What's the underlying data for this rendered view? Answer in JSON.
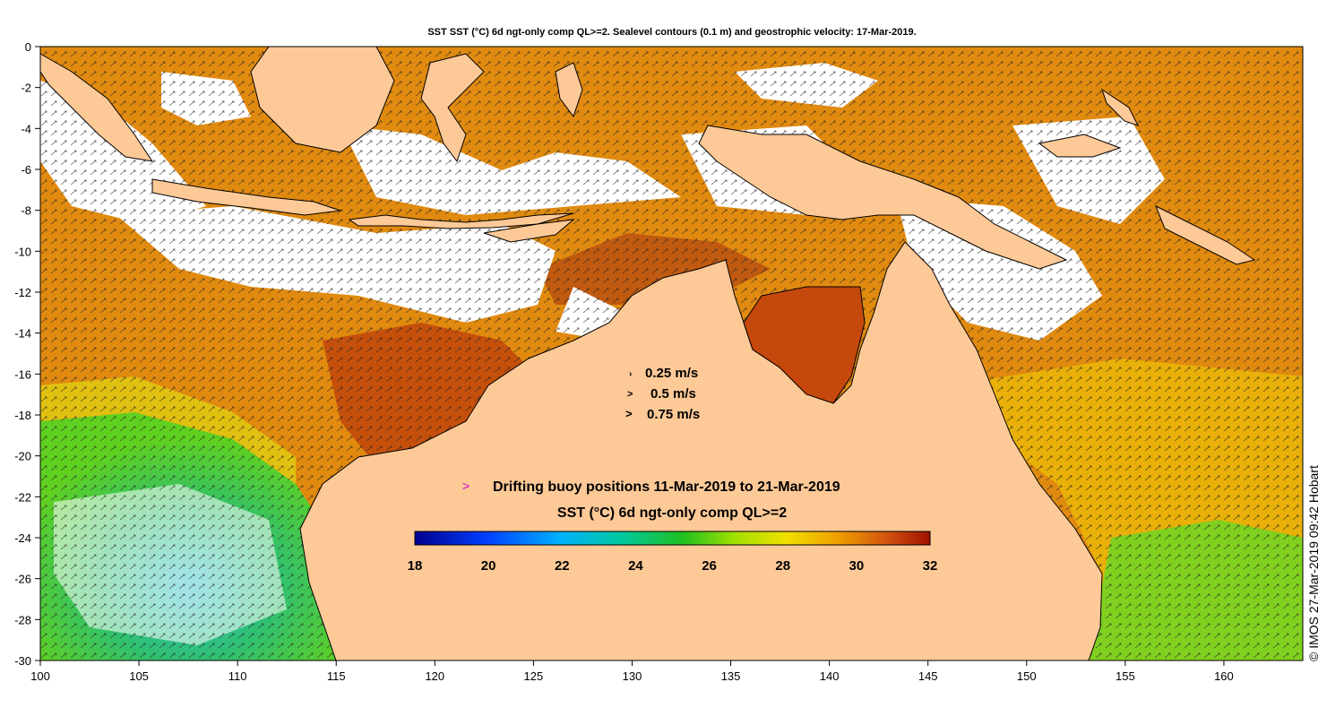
{
  "title": "SST SST (°C) 6d ngt-only comp QL>=2. Sealevel contours (0.1 m) and geostrophic velocity: 17-Mar-2019.",
  "axes": {
    "x_ticks": [
      "100",
      "105",
      "110",
      "115",
      "120",
      "125",
      "130",
      "135",
      "140",
      "145",
      "150",
      "155",
      "160"
    ],
    "y_ticks": [
      "0",
      "-2",
      "-4",
      "-6",
      "-8",
      "-10",
      "-12",
      "-14",
      "-16",
      "-18",
      "-20",
      "-22",
      "-24",
      "-26",
      "-28",
      "-30"
    ],
    "lon_range": [
      100,
      164
    ],
    "lat_range": [
      -30,
      0
    ]
  },
  "velocity_legend": [
    {
      "arrow": "›",
      "label": "0.25 m/s"
    },
    {
      "arrow": ">",
      "label": "0.5 m/s"
    },
    {
      "arrow": ">",
      "label": "0.75 m/s"
    }
  ],
  "buoy_legend": {
    "marker": ">",
    "label": "Drifting buoy positions 11-Mar-2019 to 21-Mar-2019",
    "color": "#d000d0"
  },
  "colorbar": {
    "title": "SST (°C) 6d ngt-only comp QL>=2",
    "ticks": [
      "18",
      "20",
      "22",
      "24",
      "26",
      "28",
      "30",
      "32"
    ],
    "range": [
      18,
      32
    ]
  },
  "credit": "© IMOS 27-Mar-2019 09:42 Hobart",
  "colors": {
    "land": "#fdc997",
    "ocean_warm": "#e08a10",
    "ocean_hot": "#b8400a",
    "cloud": "#ffffff"
  }
}
